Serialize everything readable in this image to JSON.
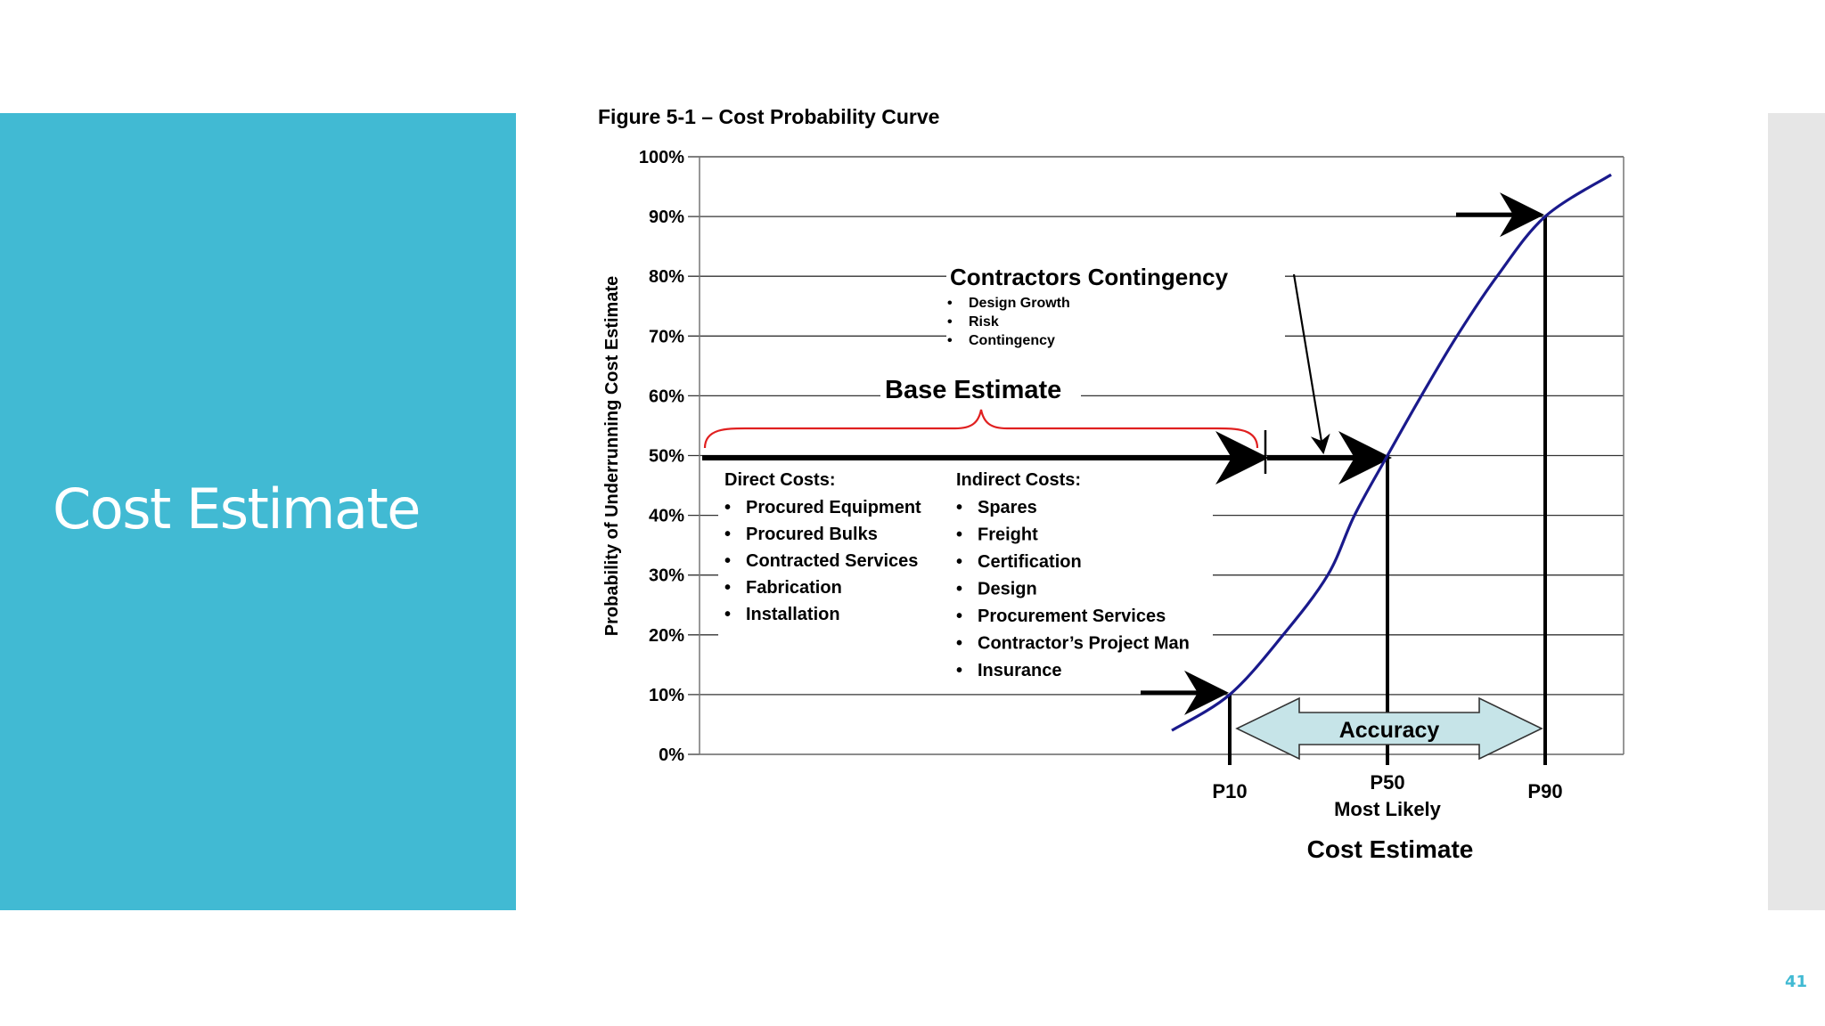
{
  "slide": {
    "title": "Cost Estimate",
    "page_number": "41",
    "accent_color": "#41bad3"
  },
  "chart_data": {
    "type": "line",
    "title": "Figure 5-1 – Cost Probability Curve",
    "ylabel": "Probability of Underrunning Cost Estimate",
    "xlabel": "Cost Estimate",
    "ylim": [
      0,
      100
    ],
    "y_ticks": [
      "0%",
      "10%",
      "20%",
      "30%",
      "40%",
      "50%",
      "60%",
      "70%",
      "80%",
      "90%",
      "100%"
    ],
    "grid": true,
    "series_color": "#1a1a8c",
    "curve": {
      "y": [
        4,
        10,
        20,
        30,
        40,
        50,
        60,
        70,
        80,
        90,
        97
      ]
    },
    "percentiles": [
      {
        "label": "P10",
        "sublabel": "",
        "y": 10
      },
      {
        "label": "P50",
        "sublabel": "Most Likely",
        "y": 50
      },
      {
        "label": "P90",
        "sublabel": "",
        "y": 90
      }
    ],
    "annotations": {
      "base_estimate": "Base Estimate",
      "contractors_contingency": {
        "title": "Contractors Contingency",
        "items": [
          "Design Growth",
          "Risk",
          "Contingency"
        ]
      },
      "direct_costs": {
        "title": "Direct Costs:",
        "items": [
          "Procured Equipment",
          "Procured Bulks",
          "Contracted Services",
          "Fabrication",
          "Installation"
        ]
      },
      "indirect_costs": {
        "title": "Indirect Costs:",
        "items": [
          "Spares",
          "Freight",
          "Certification",
          "Design",
          "Procurement Services",
          "Contractor’s Project Man",
          "Insurance"
        ]
      },
      "accuracy": "Accuracy"
    }
  }
}
